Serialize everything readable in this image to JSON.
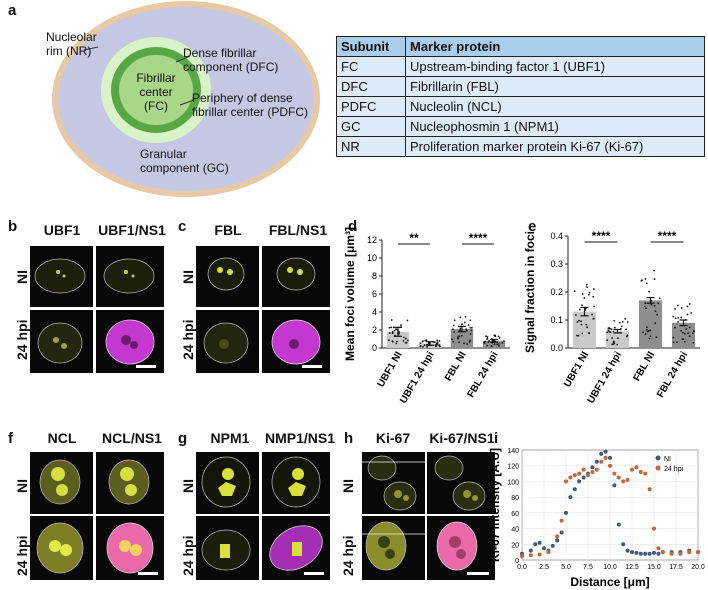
{
  "panel_labels": {
    "a": "a",
    "b": "b",
    "c": "c",
    "d": "d",
    "e": "e",
    "f": "f",
    "g": "g",
    "h": "h",
    "i": "i"
  },
  "diagram": {
    "nr_label": "Nucleolar rim (NR)",
    "dfc_label": "Dense fibrillar component (DFC)",
    "fc_label": "Fibrillar center (FC)",
    "pdfc_label": "Periphery of dense fibrillar center (PDFC)",
    "gc_label": "Granular component (GC)"
  },
  "table": {
    "headers": [
      "Subunit",
      "Marker protein"
    ],
    "rows": [
      [
        "FC",
        "Upstream-binding factor 1 (UBF1)"
      ],
      [
        "DFC",
        "Fibrillarin (FBL)"
      ],
      [
        "PDFC",
        "Nucleolin (NCL)"
      ],
      [
        "GC",
        "Nucleophosmin 1 (NPM1)"
      ],
      [
        "NR",
        "Proliferation marker protein Ki-67 (Ki-67)"
      ]
    ]
  },
  "micro": {
    "b": {
      "col1": "UBF1",
      "col2": "UBF1/NS1"
    },
    "c": {
      "col1": "FBL",
      "col2": "FBL/NS1"
    },
    "f": {
      "col1": "NCL",
      "col2": "NCL/NS1"
    },
    "g": {
      "col1": "NPM1",
      "col2": "NMP1/NS1"
    },
    "h": {
      "col1": "Ki-67",
      "col2": "Ki-67/NS1"
    },
    "row_ni": "NI",
    "row_24": "24 hpi"
  },
  "colors": {
    "yellow": "#d8e03a",
    "magenta": "#c437d0",
    "pink": "#e96aa6",
    "bar_gray": "#c9c9c9",
    "bar_dark": "#8e8e8e",
    "ni": "#3d5a80",
    "hpi": "#c8643a"
  },
  "chart_data": [
    {
      "type": "bar",
      "panel": "d",
      "ylabel": "Mean foci volume [μm³]",
      "categories": [
        "UBF1 NI",
        "UBF1 24 hpi",
        "FBL NI",
        "FBL 24 hpi"
      ],
      "values": [
        1.8,
        0.5,
        2.1,
        0.8
      ],
      "errors": [
        0.5,
        0.2,
        0.3,
        0.15
      ],
      "yticks": [
        "0",
        "2",
        "4",
        "6",
        "8",
        "10",
        "12"
      ],
      "ylim": [
        0,
        12
      ],
      "significance": [
        "**",
        "****"
      ]
    },
    {
      "type": "bar",
      "panel": "e",
      "ylabel": "Signal fraction in foci",
      "categories": [
        "UBF1 NI",
        "UBF1 24 hpi",
        "FBL NI",
        "FBL 24 hpi"
      ],
      "values": [
        0.13,
        0.06,
        0.17,
        0.09
      ],
      "errors": [
        0.015,
        0.006,
        0.01,
        0.01
      ],
      "yticks": [
        "0.0",
        "0.1",
        "0.2",
        "0.3",
        "0.4"
      ],
      "ylim": [
        0,
        0.4
      ],
      "significance": [
        "****",
        "****"
      ]
    },
    {
      "type": "scatter",
      "panel": "i",
      "xlabel": "Distance [μm]",
      "ylabel": "Ki-67 intensity [A.U]",
      "xlim": [
        0,
        20
      ],
      "ylim": [
        0,
        140
      ],
      "xticks": [
        "0.0",
        "2.5",
        "5.0",
        "7.5",
        "10.0",
        "12.5",
        "15.0",
        "17.5",
        "20.0"
      ],
      "yticks": [
        "0",
        "20",
        "40",
        "60",
        "80",
        "100",
        "120",
        "140"
      ],
      "series": [
        {
          "name": "NI",
          "x": [
            0,
            1,
            1.5,
            2,
            2.5,
            3,
            3.5,
            4,
            4.5,
            5,
            5.5,
            6,
            6.5,
            7,
            7.5,
            8,
            8.5,
            9,
            9.5,
            10,
            10.5,
            11,
            11.5,
            12,
            12.5,
            13,
            13.5,
            14,
            14.5,
            15,
            15.5,
            16,
            17,
            18,
            19,
            20
          ],
          "y": [
            8,
            12,
            20,
            22,
            15,
            12,
            18,
            25,
            35,
            60,
            80,
            90,
            100,
            105,
            110,
            118,
            125,
            135,
            138,
            130,
            95,
            45,
            20,
            12,
            10,
            9,
            8,
            8,
            8,
            9,
            8,
            10,
            10,
            10,
            12,
            10
          ]
        },
        {
          "name": "24 hpi",
          "x": [
            0,
            1,
            2,
            3,
            4,
            4.5,
            5,
            5.5,
            6,
            6.5,
            7,
            7.5,
            8,
            8.5,
            9,
            9.5,
            10,
            10.5,
            11,
            11.5,
            12,
            12.5,
            13,
            13.5,
            14,
            14.5,
            15,
            15.5,
            16,
            17,
            18,
            19,
            20
          ],
          "y": [
            5,
            6,
            7,
            10,
            30,
            50,
            100,
            105,
            108,
            110,
            115,
            108,
            112,
            115,
            125,
            130,
            120,
            110,
            105,
            100,
            102,
            115,
            118,
            112,
            110,
            90,
            40,
            15,
            10,
            8,
            8,
            10,
            10
          ]
        }
      ]
    }
  ]
}
